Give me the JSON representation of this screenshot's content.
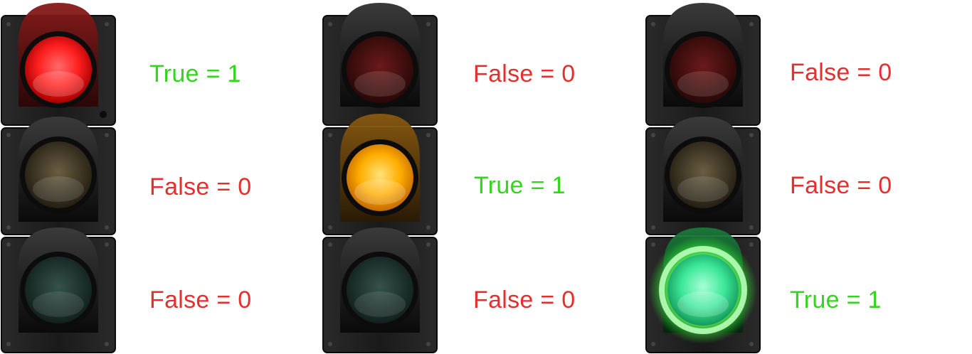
{
  "colors": {
    "true_text": "#35d41f",
    "false_text": "#e3302e",
    "housing": "#1f1f1f",
    "red_on": "#ff2a2a",
    "red_off": "#5a1212",
    "amber_on": "#ffb000",
    "amber_off": "#4f4530",
    "green_on": "#3df0a0",
    "green_off": "#1f3a33"
  },
  "signals": [
    {
      "lamps": [
        {
          "color": "red",
          "state": true,
          "label": "True = 1"
        },
        {
          "color": "amber",
          "state": false,
          "label": "False = 0"
        },
        {
          "color": "green",
          "state": false,
          "label": "False = 0"
        }
      ]
    },
    {
      "lamps": [
        {
          "color": "red",
          "state": false,
          "label": "False = 0"
        },
        {
          "color": "amber",
          "state": true,
          "label": "True = 1"
        },
        {
          "color": "green",
          "state": false,
          "label": "False = 0"
        }
      ]
    },
    {
      "lamps": [
        {
          "color": "red",
          "state": false,
          "label": "False = 0"
        },
        {
          "color": "amber",
          "state": false,
          "label": "False = 0"
        },
        {
          "color": "green",
          "state": true,
          "label": "True = 1"
        }
      ]
    }
  ]
}
